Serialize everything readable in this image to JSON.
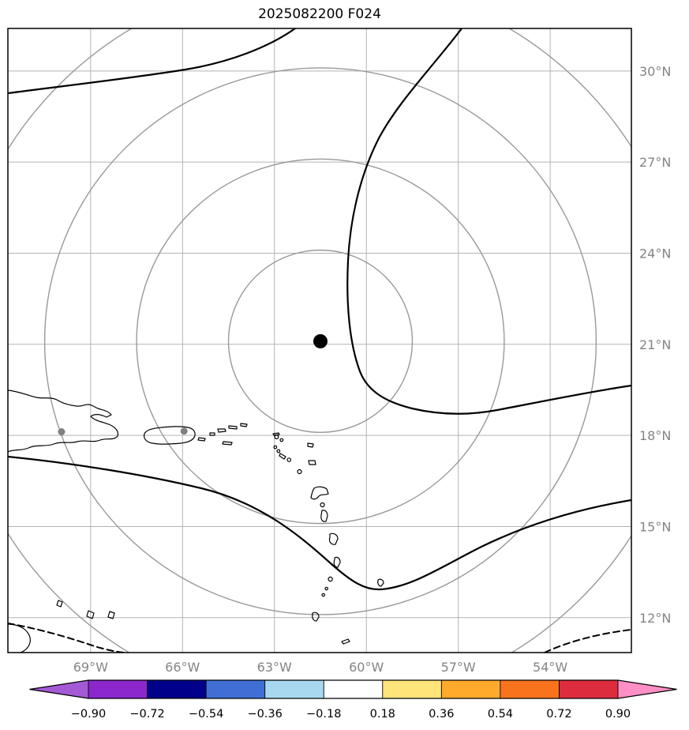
{
  "title": "2025082200 F024",
  "axes": {
    "lat_ticks": [
      {
        "value": 30,
        "label": "30°N"
      },
      {
        "value": 27,
        "label": "27°N"
      },
      {
        "value": 24,
        "label": "24°N"
      },
      {
        "value": 21,
        "label": "21°N"
      },
      {
        "value": 18,
        "label": "18°N"
      },
      {
        "value": 15,
        "label": "15°N"
      },
      {
        "value": 12,
        "label": "12°N"
      }
    ],
    "lon_ticks": [
      {
        "value": -69,
        "label": "69°W"
      },
      {
        "value": -66,
        "label": "66°W"
      },
      {
        "value": -63,
        "label": "63°W"
      },
      {
        "value": -60,
        "label": "60°W"
      },
      {
        "value": -57,
        "label": "57°W"
      },
      {
        "value": -54,
        "label": "54°W"
      }
    ]
  },
  "colorbar": {
    "tick_labels": [
      "−0.90",
      "−0.72",
      "−0.54",
      "−0.36",
      "−0.18",
      "0.18",
      "0.36",
      "0.54",
      "0.72",
      "0.90"
    ],
    "levels": [
      -0.9,
      -0.72,
      -0.54,
      -0.36,
      -0.18,
      0.18,
      0.36,
      0.54,
      0.72,
      0.9
    ],
    "segment_colors": [
      "#8b27cc",
      "#00008b",
      "#3f6fd4",
      "#a8d8ef",
      "#ffffff",
      "#ffe47a",
      "#ffaa2b",
      "#f9731d",
      "#dd2c3e"
    ],
    "arrow_left_color": "#a45ad6",
    "arrow_right_color": "#ff8fc5",
    "outline_color": "#000000"
  },
  "chart_data": {
    "type": "map-contour",
    "title": "2025082200 F024",
    "projection": "lat-lon grid over Caribbean / western Atlantic",
    "lon_range": [
      -71.7,
      -51.35
    ],
    "lat_range": [
      10.85,
      31.4
    ],
    "grid_lons": [
      -69,
      -66,
      -63,
      -60,
      -57,
      -54
    ],
    "grid_lats": [
      12,
      15,
      18,
      21,
      24,
      27,
      30
    ],
    "grid": true,
    "center_marker": {
      "lon": -61.5,
      "lat": 21.1,
      "color": "#000000"
    },
    "range_rings_deg": [
      3,
      6,
      9,
      12
    ],
    "range_ring_color": "#999999",
    "city_markers": [
      {
        "lon": -69.95,
        "lat": 18.12
      },
      {
        "lon": -65.95,
        "lat": 18.14
      }
    ],
    "city_marker_color": "#808080",
    "contours": {
      "style": "black solid and dashed unlabeled contour lines"
    },
    "colorbar_levels": [
      -0.9,
      -0.72,
      -0.54,
      -0.36,
      -0.18,
      0.18,
      0.36,
      0.54,
      0.72,
      0.9
    ],
    "legend_position": "bottom"
  }
}
